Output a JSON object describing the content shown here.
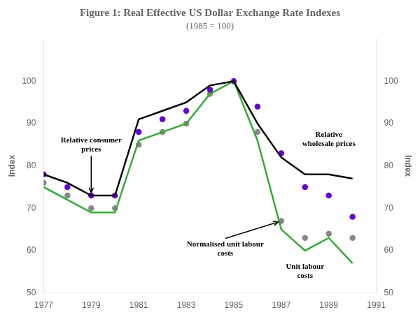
{
  "chart_data": {
    "type": "line",
    "title": "Figure 1: Real Effective US Dollar Exchange Rate Indexes",
    "subtitle": "(1985 = 100)",
    "ylabel": "Index",
    "y2label": "Index",
    "x": [
      1977,
      1978,
      1979,
      1980,
      1981,
      1982,
      1983,
      1984,
      1985,
      1986,
      1987,
      1988,
      1989,
      1990
    ],
    "xlim": [
      1977,
      1991
    ],
    "xticks": [
      1977,
      1979,
      1981,
      1983,
      1985,
      1987,
      1989,
      1991
    ],
    "ylim": [
      50,
      110
    ],
    "yticks": [
      50,
      60,
      70,
      80,
      90,
      100
    ],
    "y2lim": [
      50,
      110
    ],
    "y2ticks": [
      50,
      60,
      70,
      80,
      90,
      100
    ],
    "grid": false,
    "series": [
      {
        "name": "Normalised unit labour\ncosts",
        "color": "#888888",
        "marker": "circle",
        "line_style": "none",
        "values": [
          76,
          73,
          70,
          70,
          85,
          88,
          90,
          97,
          100,
          88,
          67,
          63,
          64,
          63
        ]
      },
      {
        "name": "Relative\nwholesale prices",
        "color": "#6600cc",
        "marker": "circle",
        "line_style": "none",
        "values": [
          78,
          75,
          73,
          73,
          88,
          91,
          93,
          98,
          100,
          94,
          83,
          75,
          73,
          68
        ]
      },
      {
        "name": "Unit labour\ncosts",
        "color": "#33aa33",
        "marker": "none",
        "line_style": "solid",
        "values": [
          75,
          72,
          69,
          69,
          86,
          88,
          90,
          97,
          100,
          86,
          65,
          60,
          63,
          57
        ]
      },
      {
        "name": "Relative consumer\nprices",
        "color": "#000000",
        "marker": "none",
        "line_style": "solid",
        "values": [
          78,
          76,
          73,
          73,
          91,
          93,
          95,
          99,
          100,
          90,
          82,
          78,
          78,
          77
        ]
      }
    ]
  }
}
